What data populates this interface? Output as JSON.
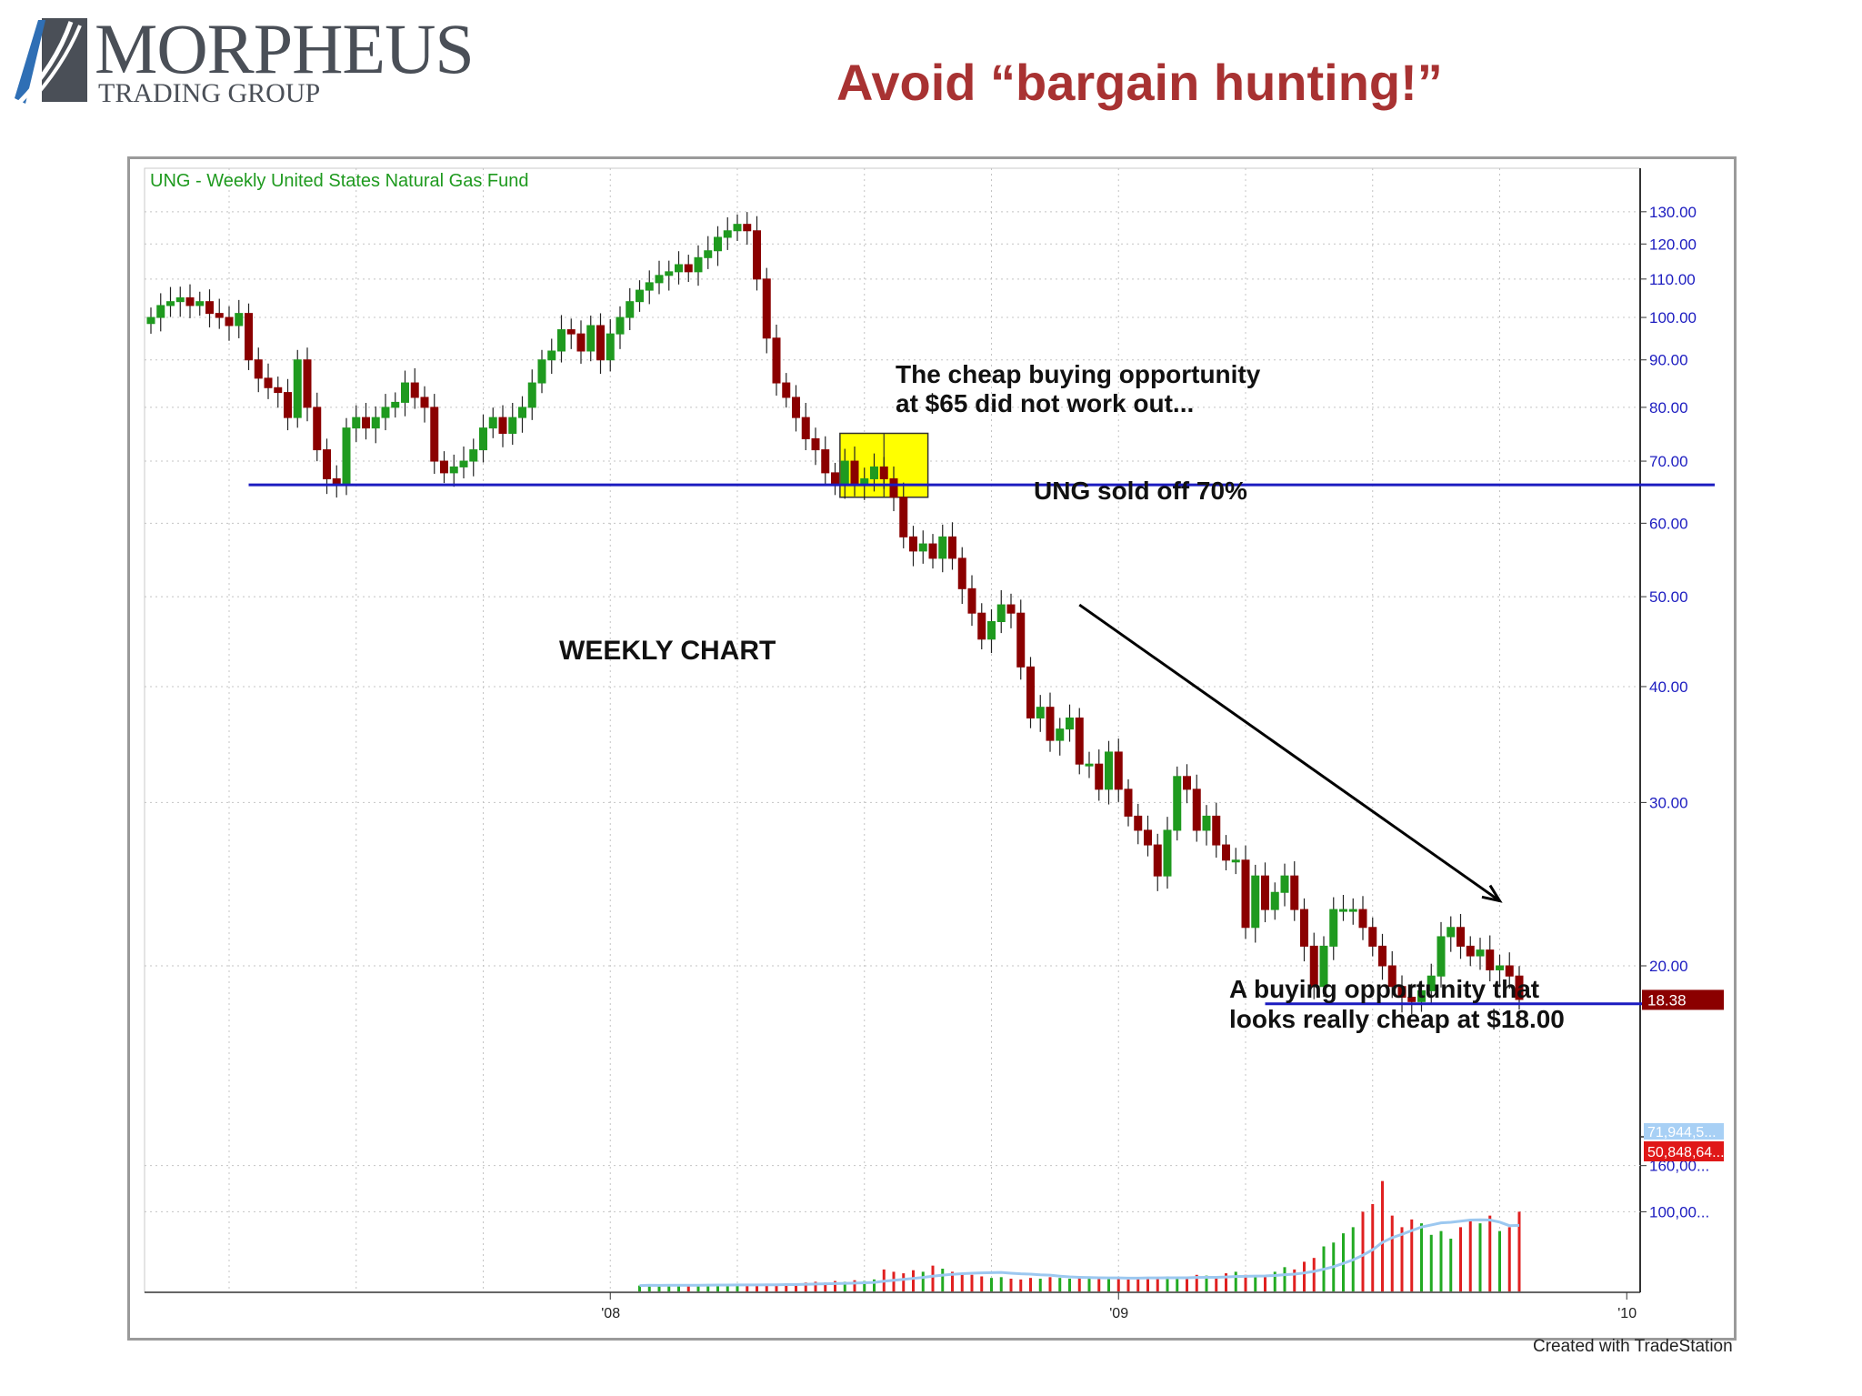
{
  "logo": {
    "name": "MORPHEUS",
    "tagline": "TRADING GROUP"
  },
  "headline": "Avoid “bargain hunting!”",
  "credit": "Created with TradeStation",
  "colors": {
    "up": "#1f9a1f",
    "down": "#8b0000",
    "support": "#1c1cc0",
    "highlight": "#ffff00",
    "headline": "#a83232",
    "axis_text": "#1c1cc0"
  },
  "chart_data": {
    "type": "candlestick",
    "title": "UNG - Weekly  United States Natural Gas Fund",
    "y_scale": "log",
    "ylim": [
      14,
      140
    ],
    "yticks": [
      130,
      120,
      110,
      100,
      90,
      80,
      70,
      60,
      50,
      40,
      30,
      20
    ],
    "ytick_labels": [
      "130.00",
      "120.00",
      "110.00",
      "100.00",
      "90.00",
      "80.00",
      "70.00",
      "60.00",
      "50.00",
      "40.00",
      "30.00",
      "20.00"
    ],
    "xticks": [
      {
        "label": "'08",
        "week": 47
      },
      {
        "label": "'09",
        "week": 99
      },
      {
        "label": "'10",
        "week": 151
      }
    ],
    "last_price": {
      "label": "18.38",
      "value": 18.38
    },
    "support_lines": [
      {
        "value": 66,
        "from_week": 10,
        "to_week": 160
      },
      {
        "value": 18.2,
        "from_week": 114,
        "to_week": 160
      }
    ],
    "highlight_box": {
      "from_week": 70.5,
      "to_week": 79.5,
      "low": 64,
      "high": 75
    },
    "annotations": [
      {
        "text_lines": [
          "The cheap buying opportunity",
          "at $65 did not work out..."
        ]
      },
      {
        "text": "UNG sold off 70%"
      },
      {
        "text": "WEEKLY CHART"
      },
      {
        "text_lines": [
          "A buying opportunity that",
          "looks really cheap at $18.00"
        ]
      }
    ],
    "arrow": {
      "from": {
        "week": 95,
        "value": 49
      },
      "to": {
        "week": 138,
        "value": 23.5
      }
    },
    "closes": [
      100,
      103,
      104,
      105,
      103,
      104,
      101,
      100,
      98,
      101,
      90,
      86,
      84,
      83,
      78,
      90,
      80,
      72,
      67,
      66,
      76,
      78,
      76,
      78,
      80,
      81,
      85,
      82,
      80,
      70,
      68,
      69,
      70,
      72,
      76,
      78,
      75,
      78,
      80,
      85,
      90,
      92,
      97,
      96,
      92,
      98,
      90,
      96,
      100,
      104,
      107,
      109,
      111,
      112,
      114,
      112,
      116,
      118,
      122,
      124,
      126,
      124,
      110,
      95,
      85,
      82,
      78,
      74,
      72,
      68,
      66,
      70,
      66,
      67,
      69,
      67,
      64,
      58,
      56,
      57,
      55,
      58,
      55,
      51,
      48,
      45,
      47,
      49,
      48,
      42,
      37,
      38,
      35,
      36,
      37,
      33,
      33,
      31,
      34,
      31,
      29,
      28,
      27,
      25,
      28,
      32,
      31,
      28,
      29,
      27,
      26,
      26,
      22,
      25,
      23,
      24,
      25,
      23,
      21,
      19,
      21,
      23,
      23,
      23,
      22,
      21,
      20,
      19,
      18.5,
      18.3,
      18.8,
      19.5,
      21.5,
      22,
      21,
      20.5,
      20.8,
      19.8,
      20,
      19.5,
      18.4
    ],
    "volume": {
      "ylabels": [
        "160,00...",
        "100,00..."
      ],
      "ma_label": "71,944,5...",
      "last_label": "50,848,64...",
      "start_week": 50,
      "values": [
        4,
        5,
        4,
        5,
        4,
        5,
        4,
        6,
        5,
        6,
        5,
        6,
        5,
        6,
        5,
        7,
        6,
        8,
        9,
        8,
        10,
        9,
        11,
        10,
        12,
        25,
        22,
        20,
        24,
        22,
        30,
        26,
        22,
        20,
        18,
        16,
        14,
        15,
        13,
        12,
        14,
        13,
        15,
        14,
        13,
        15,
        16,
        15,
        14,
        13,
        12,
        13,
        15,
        14,
        16,
        15,
        14,
        18,
        17,
        16,
        20,
        22,
        18,
        15,
        16,
        22,
        28,
        25,
        35,
        40,
        55,
        60,
        72,
        80,
        100,
        110,
        140,
        95,
        80,
        90,
        85,
        70,
        75,
        65,
        80,
        90,
        85,
        95,
        75,
        80,
        100,
        95,
        85,
        70,
        75,
        90,
        85,
        80,
        75,
        70,
        72,
        68,
        70,
        75,
        80,
        70,
        90,
        65,
        85,
        95,
        70,
        80,
        110,
        75,
        70,
        65
      ]
    }
  }
}
